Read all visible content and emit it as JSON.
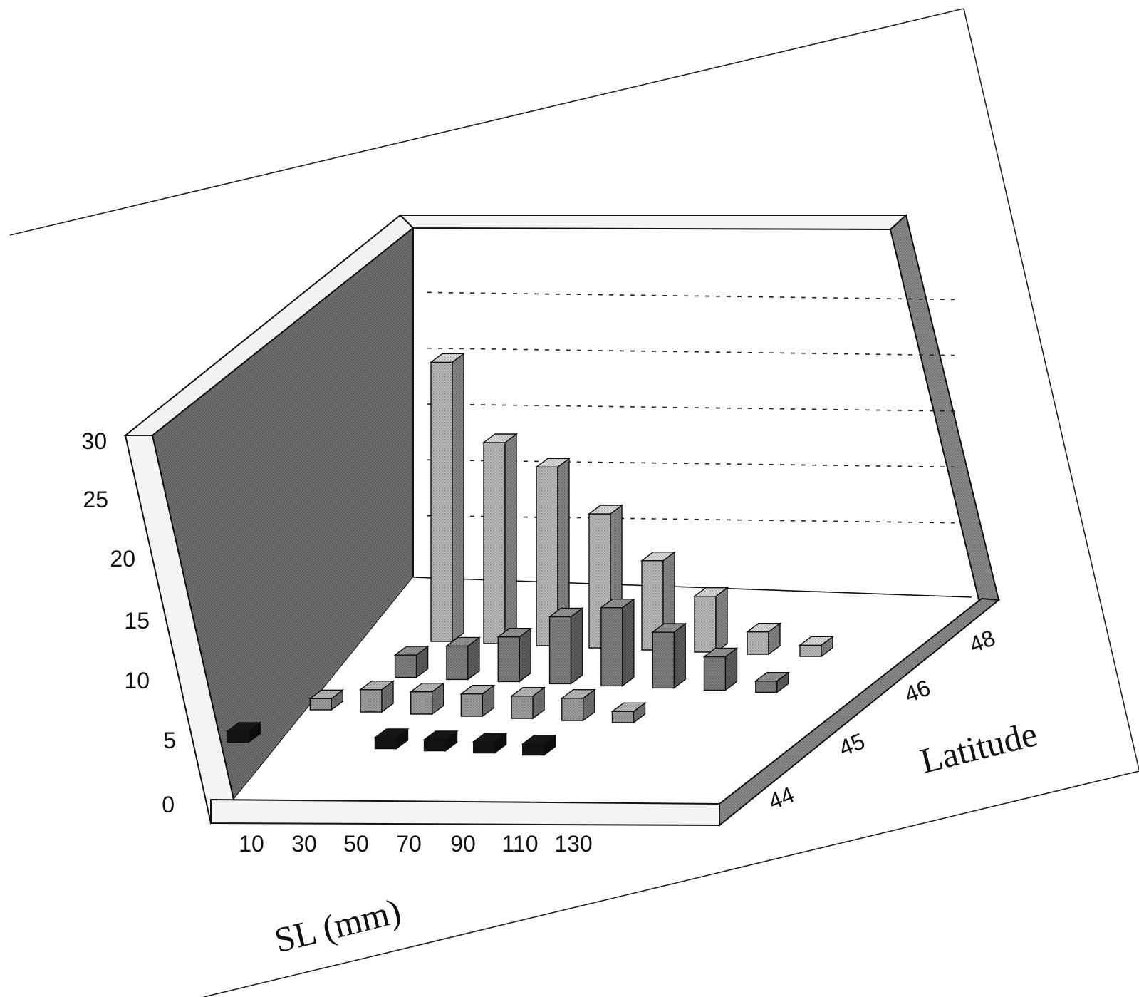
{
  "chart_data": {
    "type": "bar",
    "title": "",
    "xlabel": "SL (mm)",
    "ylabel": "Latitude",
    "zlabel": "",
    "x_ticks": [
      "10",
      "30",
      "50",
      "70",
      "90",
      "110",
      "130"
    ],
    "y_ticks": [
      "44",
      "45",
      "46",
      "48"
    ],
    "z_ticks": [
      "0",
      "5",
      "10",
      "15",
      "20",
      "25",
      "30"
    ],
    "zlim": [
      0,
      30
    ],
    "grid": true,
    "series": [
      {
        "latitude": "44",
        "x": [
          30,
          90,
          110,
          130,
          150
        ],
        "values": [
          1,
          1,
          1,
          1,
          1
        ]
      },
      {
        "latitude": "45",
        "x": [
          50,
          70,
          90,
          110,
          130,
          150,
          170
        ],
        "values": [
          1,
          2,
          2,
          2,
          2,
          2,
          1
        ]
      },
      {
        "latitude": "46",
        "x": [
          70,
          90,
          110,
          130,
          150,
          170,
          190,
          210
        ],
        "values": [
          2,
          3,
          4,
          6,
          7,
          5,
          3,
          1
        ]
      },
      {
        "latitude": "48",
        "x": [
          70,
          90,
          110,
          130,
          150,
          170,
          190,
          210
        ],
        "values": [
          25,
          18,
          16,
          12,
          8,
          5,
          2,
          1
        ]
      }
    ]
  },
  "colors": {
    "back_wall": "#6f6f6f",
    "floor_edge": "#8a8a8a",
    "bar_44": "#141414",
    "bar_45": "#9d9d9d",
    "bar_46": "#7e7e7e",
    "bar_48": "#b9b9b9"
  }
}
